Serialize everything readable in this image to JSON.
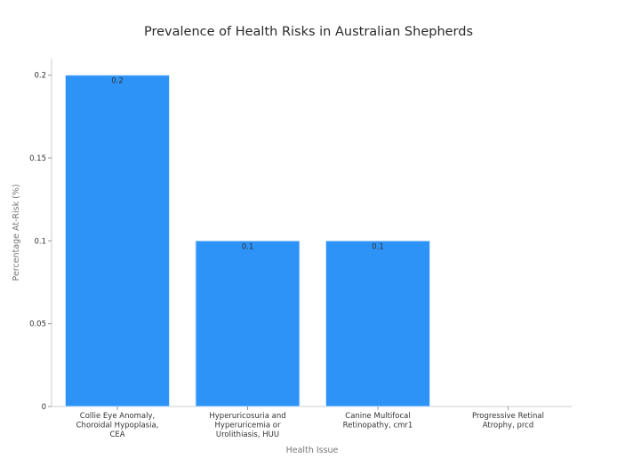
{
  "chart_data": {
    "type": "bar",
    "title": "Prevalence of Health Risks in Australian Shepherds",
    "xlabel": "Health Issue",
    "ylabel": "Percentage At-Risk (%)",
    "ylim": [
      0,
      0.21
    ],
    "yticks": [
      0,
      0.05,
      0.1,
      0.15,
      0.2
    ],
    "ytick_labels": [
      "0",
      "0.05",
      "0.1",
      "0.15",
      "0.2"
    ],
    "categories": [
      [
        "Collie Eye Anomaly,",
        "Choroidal Hypoplasia,",
        "CEA"
      ],
      [
        "Hyperuricosuria and",
        "Hyperuricemia or",
        "Urolithiasis, HUU"
      ],
      [
        "Canine Multifocal",
        "Retinopathy, cmr1"
      ],
      [
        "Progressive Retinal",
        "Atrophy, prcd"
      ]
    ],
    "values": [
      0.2,
      0.1,
      0.1,
      0
    ],
    "data_labels": [
      "0.2",
      "0.1",
      "0.1",
      ""
    ],
    "bar_color": "#2e93f7",
    "bar_edge_color": "#d0e6fb",
    "grid": false,
    "legend": "none"
  }
}
